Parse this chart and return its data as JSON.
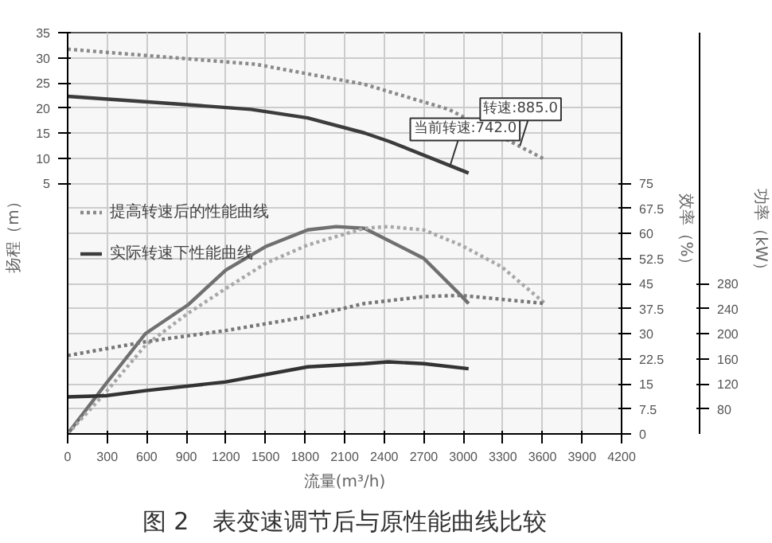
{
  "chart_data": {
    "type": "line",
    "xlabel": "流量(m³/h)",
    "ylabel": "扬程（m）",
    "y2label": "效率（%）",
    "y3label": "功率（kW）",
    "xlim": [
      0,
      4200
    ],
    "xticks": [
      0,
      300,
      600,
      900,
      1200,
      1500,
      1800,
      2100,
      2400,
      2700,
      3000,
      3300,
      3600,
      3900,
      4200
    ],
    "ylim": [
      -45,
      35
    ],
    "yticks": [
      5,
      10,
      15,
      20,
      25,
      30,
      35
    ],
    "y2lim": [
      0,
      120
    ],
    "y2ticks": [
      0,
      7.5,
      15,
      22.5,
      30,
      37.5,
      45,
      52.5,
      60,
      67.5,
      75
    ],
    "y3lim": [
      40,
      680
    ],
    "y3ticks": [
      80,
      120,
      160,
      200,
      240,
      280
    ],
    "grid": true,
    "legend": "left",
    "line_style": "solid",
    "marker": "none",
    "series": [
      {
        "name": "提高转速后的性能曲线",
        "color": "#8a8a8a",
        "line_style": "dotted",
        "x": [
          0,
          1425,
          2250,
          2890,
          3620
        ],
        "values": [
          31.7,
          28.7,
          24.7,
          19.7,
          9.7
        ]
      },
      {
        "name": "实际转速下性能曲线",
        "color": "#3c3c3c",
        "x": [
          0,
          717,
          1390,
          1820,
          2250,
          2440,
          3040
        ],
        "values": [
          22.3,
          21,
          19.7,
          18,
          15,
          13.3,
          7
        ]
      },
      {
        "color": "#707070",
        "axis": "y2",
        "x": [
          0,
          290,
          590,
          910,
          1200,
          1500,
          1820,
          2035,
          2250,
          2700,
          2980,
          3040
        ],
        "values": [
          0,
          15,
          30,
          38.5,
          49,
          56,
          61,
          62,
          61.5,
          52.5,
          41.5,
          39
        ]
      },
      {
        "color": "#a8a8a8",
        "axis": "y2",
        "line_style": "dotted",
        "x": [
          0,
          290,
          590,
          910,
          1200,
          1500,
          1820,
          2250,
          2430,
          2700,
          2980,
          3290,
          3620
        ],
        "values": [
          0,
          12.5,
          26.5,
          36,
          43.5,
          51,
          56.5,
          61.5,
          62,
          61,
          56.5,
          50,
          39
        ]
      },
      {
        "color": "#333333",
        "axis": "y3",
        "x": [
          0,
          290,
          590,
          1200,
          1820,
          2250,
          2430,
          2700,
          3040
        ],
        "values": [
          99,
          101,
          109,
          123,
          147,
          152,
          155,
          152,
          144
        ]
      },
      {
        "color": "#777777",
        "axis": "y3",
        "line_style": "dotted",
        "x": [
          0,
          590,
          1200,
          1820,
          2250,
          2700,
          2980,
          3620
        ],
        "values": [
          165,
          187,
          205,
          227,
          248,
          259,
          261,
          248
        ]
      }
    ],
    "annotations": [
      {
        "text": "当前转速:742.0",
        "x": 2900,
        "y": 8.5
      },
      {
        "text": "转速:885.0",
        "x": 3430,
        "y": 12.5
      },
      "图 2　表变速调节后与原性能曲线比较"
    ]
  }
}
